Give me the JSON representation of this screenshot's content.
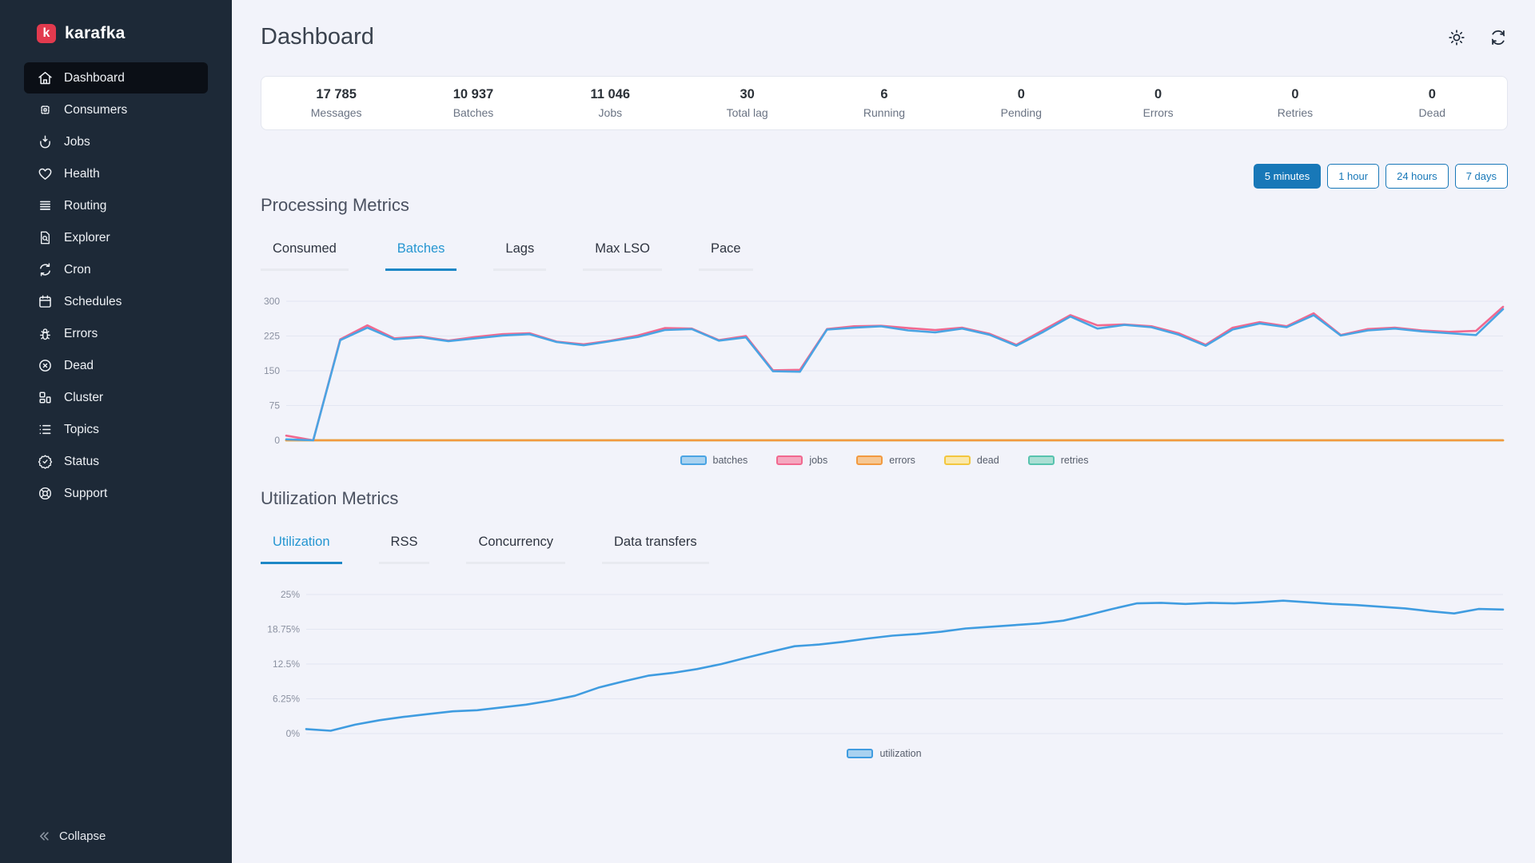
{
  "sidebar": {
    "logo": {
      "letter": "k",
      "text": "karafka",
      "badge_color": "#e23a4e"
    },
    "items": [
      {
        "label": "Dashboard",
        "icon": "home",
        "active": true
      },
      {
        "label": "Consumers",
        "icon": "chip",
        "active": false
      },
      {
        "label": "Jobs",
        "icon": "jobs",
        "active": false
      },
      {
        "label": "Health",
        "icon": "heart",
        "active": false
      },
      {
        "label": "Routing",
        "icon": "stack",
        "active": false
      },
      {
        "label": "Explorer",
        "icon": "doc-search",
        "active": false
      },
      {
        "label": "Cron",
        "icon": "cycle",
        "active": false
      },
      {
        "label": "Schedules",
        "icon": "calendar",
        "active": false
      },
      {
        "label": "Errors",
        "icon": "bug",
        "active": false
      },
      {
        "label": "Dead",
        "icon": "circle-x",
        "active": false
      },
      {
        "label": "Cluster",
        "icon": "cluster",
        "active": false
      },
      {
        "label": "Topics",
        "icon": "list",
        "active": false
      },
      {
        "label": "Status",
        "icon": "badge-check",
        "active": false
      },
      {
        "label": "Support",
        "icon": "life-ring",
        "active": false
      }
    ],
    "collapse_label": "Collapse"
  },
  "header": {
    "title": "Dashboard"
  },
  "stats": [
    {
      "value": "17 785",
      "label": "Messages"
    },
    {
      "value": "10 937",
      "label": "Batches"
    },
    {
      "value": "11 046",
      "label": "Jobs"
    },
    {
      "value": "30",
      "label": "Total lag"
    },
    {
      "value": "6",
      "label": "Running"
    },
    {
      "value": "0",
      "label": "Pending"
    },
    {
      "value": "0",
      "label": "Errors"
    },
    {
      "value": "0",
      "label": "Retries"
    },
    {
      "value": "0",
      "label": "Dead"
    }
  ],
  "time_ranges": [
    {
      "label": "5 minutes",
      "active": true
    },
    {
      "label": "1 hour",
      "active": false
    },
    {
      "label": "24 hours",
      "active": false
    },
    {
      "label": "7 days",
      "active": false
    }
  ],
  "sections": {
    "processing": {
      "title": "Processing Metrics",
      "tabs": [
        {
          "label": "Consumed",
          "active": false
        },
        {
          "label": "Batches",
          "active": true
        },
        {
          "label": "Lags",
          "active": false
        },
        {
          "label": "Max LSO",
          "active": false
        },
        {
          "label": "Pace",
          "active": false
        }
      ]
    },
    "utilization": {
      "title": "Utilization Metrics",
      "tabs": [
        {
          "label": "Utilization",
          "active": true
        },
        {
          "label": "RSS",
          "active": false
        },
        {
          "label": "Concurrency",
          "active": false
        },
        {
          "label": "Data transfers",
          "active": false
        }
      ]
    }
  },
  "chart_data": [
    {
      "type": "line",
      "title": "Processing Metrics (Batches tab)",
      "xlabel": "",
      "ylabel": "",
      "ylim": [
        0,
        300
      ],
      "grid": true,
      "legend_position": "bottom",
      "yticks": [
        {
          "v": 300,
          "label": "300"
        },
        {
          "v": 225,
          "label": "225"
        },
        {
          "v": 150,
          "label": "150"
        },
        {
          "v": 75,
          "label": "75"
        },
        {
          "v": 0,
          "label": "0"
        }
      ],
      "series": [
        {
          "name": "batches",
          "color": "#4aa4e3",
          "fill": "#a9d2f0",
          "values": [
            2,
            0,
            216,
            243,
            218,
            222,
            214,
            220,
            226,
            229,
            212,
            205,
            214,
            223,
            238,
            240,
            215,
            222,
            149,
            148,
            239,
            243,
            246,
            237,
            233,
            241,
            228,
            204,
            234,
            267,
            241,
            249,
            244,
            228,
            204,
            239,
            252,
            244,
            270,
            226,
            237,
            241,
            235,
            231,
            227,
            283
          ]
        },
        {
          "name": "jobs",
          "color": "#f1688f",
          "fill": "#f5a8bf",
          "values": [
            10,
            0,
            218,
            248,
            220,
            224,
            215,
            223,
            229,
            231,
            213,
            207,
            215,
            226,
            242,
            241,
            216,
            225,
            151,
            152,
            240,
            246,
            247,
            242,
            238,
            243,
            230,
            206,
            238,
            270,
            248,
            250,
            246,
            231,
            206,
            243,
            255,
            246,
            274,
            227,
            240,
            243,
            237,
            234,
            236,
            288
          ]
        },
        {
          "name": "errors",
          "color": "#f2993f",
          "fill": "#f6c793",
          "values": [
            0,
            0,
            0,
            0,
            0,
            0,
            0,
            0,
            0,
            0,
            0,
            0,
            0,
            0,
            0,
            0,
            0,
            0,
            0,
            0,
            0,
            0,
            0,
            0,
            0,
            0,
            0,
            0,
            0,
            0,
            0,
            0,
            0,
            0,
            0,
            0,
            0,
            0,
            0,
            0,
            0,
            0,
            0,
            0,
            0,
            0
          ]
        },
        {
          "name": "dead",
          "color": "#f3c63e",
          "fill": "#fae8ab",
          "values": [
            0,
            0,
            0,
            0,
            0,
            0,
            0,
            0,
            0,
            0,
            0,
            0,
            0,
            0,
            0,
            0,
            0,
            0,
            0,
            0,
            0,
            0,
            0,
            0,
            0,
            0,
            0,
            0,
            0,
            0,
            0,
            0,
            0,
            0,
            0,
            0,
            0,
            0,
            0,
            0,
            0,
            0,
            0,
            0,
            0,
            0
          ]
        },
        {
          "name": "retries",
          "color": "#57c3ae",
          "fill": "#abdfd4",
          "values": [
            0,
            0,
            0,
            0,
            0,
            0,
            0,
            0,
            0,
            0,
            0,
            0,
            0,
            0,
            0,
            0,
            0,
            0,
            0,
            0,
            0,
            0,
            0,
            0,
            0,
            0,
            0,
            0,
            0,
            0,
            0,
            0,
            0,
            0,
            0,
            0,
            0,
            0,
            0,
            0,
            0,
            0,
            0,
            0,
            0,
            0
          ]
        }
      ]
    },
    {
      "type": "line",
      "title": "Utilization Metrics (Utilization tab)",
      "xlabel": "",
      "ylabel": "",
      "ylim": [
        0,
        25
      ],
      "grid": true,
      "legend_position": "bottom",
      "yticks": [
        {
          "v": 25,
          "label": "25%"
        },
        {
          "v": 18.75,
          "label": "18.75%"
        },
        {
          "v": 12.5,
          "label": "12.5%"
        },
        {
          "v": 6.25,
          "label": "6.25%"
        },
        {
          "v": 0,
          "label": "0%"
        }
      ],
      "series": [
        {
          "name": "utilization",
          "color": "#3f9ce0",
          "fill": "#a9d2f0",
          "values": [
            0.8,
            0.5,
            1.6,
            2.4,
            3.0,
            3.5,
            4.0,
            4.2,
            4.7,
            5.2,
            5.9,
            6.8,
            8.3,
            9.4,
            10.4,
            10.9,
            11.6,
            12.5,
            13.6,
            14.7,
            15.7,
            16.0,
            16.5,
            17.1,
            17.6,
            17.9,
            18.3,
            18.9,
            19.2,
            19.5,
            19.8,
            20.3,
            21.3,
            22.4,
            23.4,
            23.5,
            23.3,
            23.5,
            23.4,
            23.6,
            23.9,
            23.6,
            23.3,
            23.1,
            22.8,
            22.5,
            22.0,
            21.6,
            22.4,
            22.3
          ]
        }
      ]
    }
  ],
  "colors": {
    "sidebar_bg": "#1d2937",
    "sidebar_active_bg": "#0b0f16",
    "accent_blue": "#1878b8",
    "tab_active_blue": "#2596d1",
    "main_bg": "#f2f3fa",
    "gridline": "#e3e6f2"
  }
}
